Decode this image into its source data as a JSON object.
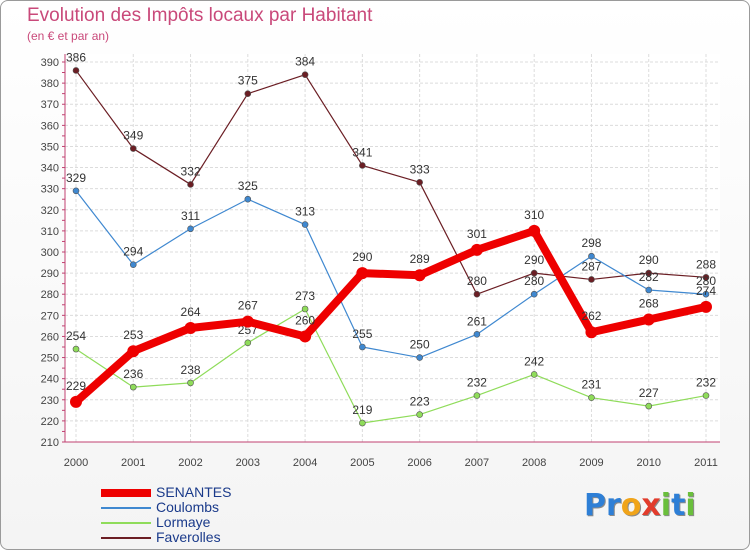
{
  "title": "Evolution des Impôts locaux par Habitant",
  "subtitle": "(en € et par an)",
  "brand": {
    "parts": [
      {
        "text": "Pr",
        "color": "#2e7fd6"
      },
      {
        "text": "o",
        "color": "#f0a41a"
      },
      {
        "text": "x",
        "color": "#e23c2c"
      },
      {
        "text": "i",
        "color": "#6abf3c"
      },
      {
        "text": "t",
        "color": "#2e7fd6"
      },
      {
        "text": "i",
        "color": "#6abf3c"
      }
    ]
  },
  "chart_data": {
    "type": "line",
    "title": "Evolution des Impôts locaux par Habitant",
    "subtitle": "(en € et par an)",
    "xlabel": "",
    "ylabel": "",
    "categories": [
      "2000",
      "2001",
      "2002",
      "2003",
      "2004",
      "2005",
      "2006",
      "2007",
      "2008",
      "2009",
      "2010",
      "2011"
    ],
    "ylim": [
      210,
      390
    ],
    "ytick_step": 10,
    "grid": true,
    "legend_position": "bottom-left",
    "series": [
      {
        "name": "Faverolles",
        "color": "#6b1e24",
        "values": [
          386,
          349,
          332,
          375,
          384,
          341,
          333,
          280,
          290,
          287,
          290,
          288
        ]
      },
      {
        "name": "Coulombs",
        "color": "#3f88d0",
        "values": [
          329,
          294,
          311,
          325,
          313,
          255,
          250,
          261,
          280,
          298,
          282,
          280
        ]
      },
      {
        "name": "Lormaye",
        "color": "#8fdc5a",
        "values": [
          254,
          236,
          238,
          257,
          273,
          219,
          223,
          232,
          242,
          231,
          227,
          232
        ]
      },
      {
        "name": "SENANTES",
        "color": "#ee0000",
        "values": [
          229,
          253,
          264,
          267,
          260,
          290,
          289,
          301,
          310,
          262,
          268,
          274
        ]
      }
    ],
    "legend_order": [
      "SENANTES",
      "Coulombs",
      "Lormaye",
      "Faverolles"
    ]
  }
}
